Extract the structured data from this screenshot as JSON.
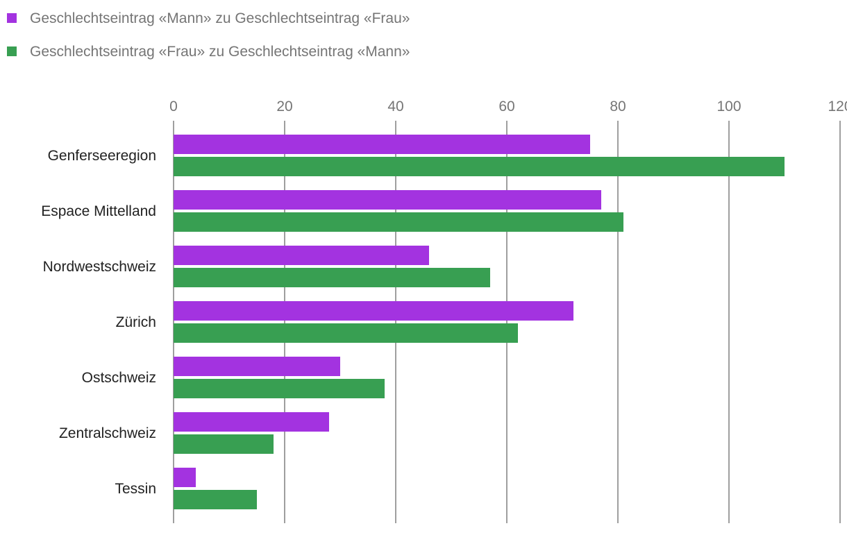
{
  "chart_data": {
    "type": "bar",
    "orientation": "horizontal",
    "title": "",
    "xlabel": "",
    "ylabel": "",
    "xlim": [
      0,
      120
    ],
    "ticks": [
      0,
      20,
      40,
      60,
      80,
      100,
      120
    ],
    "grid": true,
    "legend_position": "top-left",
    "categories": [
      "Genferseeregion",
      "Espace Mittelland",
      "Nordwestschweiz",
      "Zürich",
      "Ostschweiz",
      "Zentralschweiz",
      "Tessin"
    ],
    "series": [
      {
        "name": "Geschlechtseintrag «Mann» zu Geschlechtseintrag «Frau»",
        "color": "#a333e0",
        "values": [
          75,
          77,
          46,
          72,
          30,
          28,
          4
        ]
      },
      {
        "name": "Geschlechtseintrag «Frau» zu Geschlechtseintrag «Mann»",
        "color": "#389f52",
        "values": [
          110,
          81,
          57,
          62,
          38,
          18,
          15
        ]
      }
    ]
  }
}
